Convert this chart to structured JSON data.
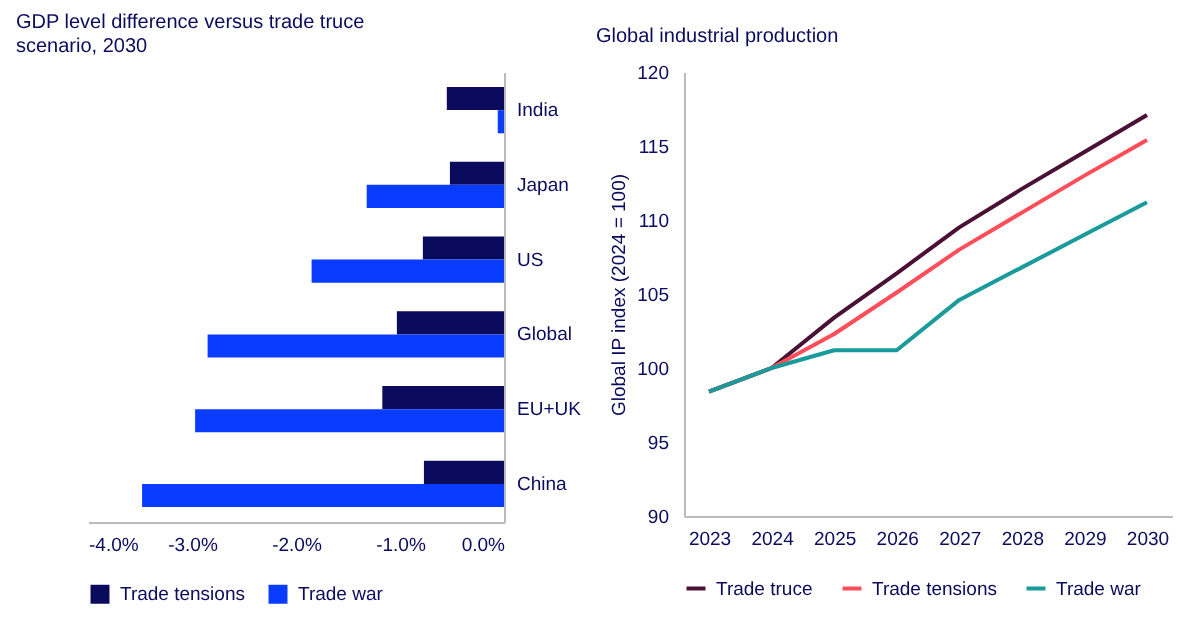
{
  "chart_data": [
    {
      "type": "bar",
      "orientation": "horizontal",
      "title": "GDP level difference versus trade truce scenario, 2030",
      "categories": [
        "India",
        "Japan",
        "US",
        "Global",
        "EU+UK",
        "China"
      ],
      "series": [
        {
          "name": "Trade tensions",
          "color": "#0b0b5e",
          "values": [
            -0.55,
            -0.52,
            -0.78,
            -1.03,
            -1.17,
            -0.77
          ]
        },
        {
          "name": "Trade war",
          "color": "#0a3cff",
          "values": [
            -0.06,
            -1.32,
            -1.85,
            -2.85,
            -2.97,
            -3.48
          ]
        }
      ],
      "xlim": [
        -4,
        0
      ],
      "xticks": [
        {
          "value": -4,
          "label": "-4.0%"
        },
        {
          "value": -3,
          "label": "-3.0%"
        },
        {
          "value": -2,
          "label": "-2.0%"
        },
        {
          "value": -1,
          "label": "-1.0%"
        },
        {
          "value": 0,
          "label": "0.0%"
        }
      ],
      "legend": "bottom",
      "grid": false
    },
    {
      "type": "line",
      "title": "Global industrial production",
      "ylabel": "Global IP index (2024 = 100)",
      "categories": [
        "2023",
        "2024",
        "2025",
        "2026",
        "2027",
        "2028",
        "2029",
        "2030"
      ],
      "series": [
        {
          "name": "Trade truce",
          "color": "#4a1035",
          "values": [
            98.4,
            100,
            103.4,
            106.4,
            109.5,
            112.1,
            114.6,
            117.1
          ]
        },
        {
          "name": "Trade tensions",
          "color": "#ff4d5a",
          "values": [
            98.4,
            100,
            102.3,
            105.1,
            108,
            110.5,
            113,
            115.4
          ]
        },
        {
          "name": "Trade war",
          "color": "#1a9a9a",
          "values": [
            98.4,
            100,
            101.2,
            101.2,
            104.6,
            106.8,
            109,
            111.2
          ]
        }
      ],
      "ylim": [
        90,
        120
      ],
      "yticks": [
        90,
        95,
        100,
        105,
        110,
        115,
        120
      ],
      "legend": "bottom",
      "grid": false
    }
  ]
}
